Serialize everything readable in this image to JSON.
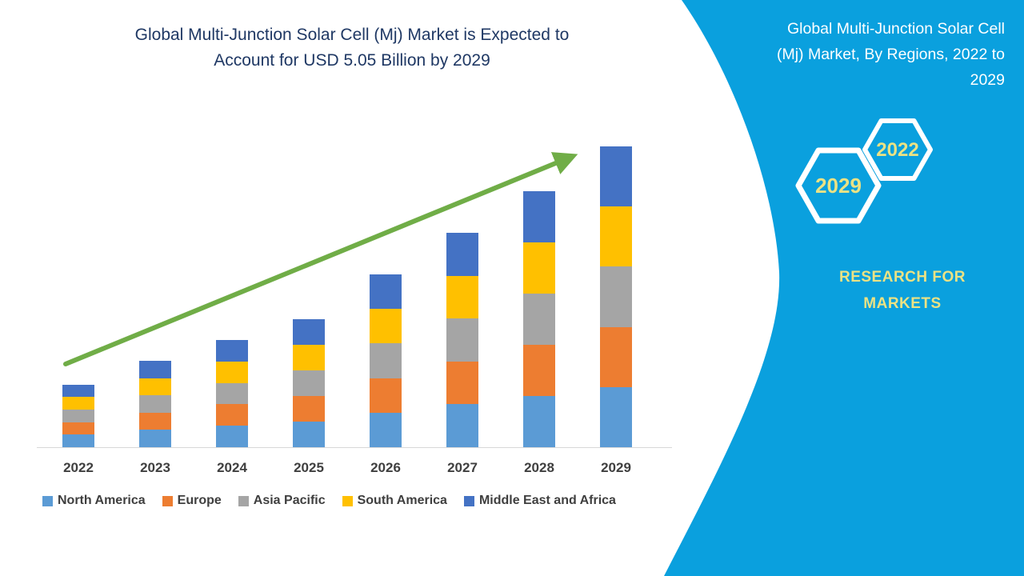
{
  "main": {
    "title": "Global Multi-Junction Solar Cell (Mj) Market is Expected to Account for USD 5.05 Billion by 2029",
    "title_lines": [
      "Global Multi-Junction Solar Cell (Mj) Market is Expected to",
      "Account for USD 5.05 Billion by 2029"
    ],
    "title_color": "#1F3864"
  },
  "chart_data": {
    "type": "bar",
    "subtype": "stacked-vertical",
    "title": "Global Multi-Junction Solar Cell (Mj) Market, By Regions, 2022 to 2029",
    "unit": "USD Billion",
    "categories": [
      "2022",
      "2023",
      "2024",
      "2025",
      "2026",
      "2027",
      "2028",
      "2029"
    ],
    "series": [
      {
        "name": "North America",
        "color": "#5B9BD5",
        "values": [
          0.21,
          0.29,
          0.36,
          0.43,
          0.58,
          0.72,
          0.86,
          1.01
        ]
      },
      {
        "name": "Europe",
        "color": "#ED7D31",
        "values": [
          0.21,
          0.29,
          0.36,
          0.43,
          0.58,
          0.72,
          0.86,
          1.01
        ]
      },
      {
        "name": "Asia Pacific",
        "color": "#A5A5A5",
        "values": [
          0.21,
          0.29,
          0.36,
          0.43,
          0.58,
          0.72,
          0.86,
          1.01
        ]
      },
      {
        "name": "South America",
        "color": "#FFC000",
        "values": [
          0.21,
          0.29,
          0.36,
          0.43,
          0.58,
          0.72,
          0.86,
          1.01
        ]
      },
      {
        "name": "Middle East and Africa",
        "color": "#4472C4",
        "values": [
          0.21,
          0.29,
          0.36,
          0.43,
          0.58,
          0.72,
          0.86,
          1.01
        ]
      }
    ],
    "totals": [
      1.05,
      1.45,
      1.8,
      2.15,
      2.9,
      3.6,
      4.3,
      5.05
    ],
    "ylim": [
      0,
      5.5
    ],
    "y_axis_visible": false,
    "grid": false,
    "legend_position": "bottom",
    "trend_arrow": true,
    "trend_arrow_color": "#70AD47",
    "axis_line_color": "#D8D8D8"
  },
  "side_panel": {
    "bg_color": "#0AA0DE",
    "title": "Global Multi-Junction Solar Cell (Mj) Market, By Regions, 2022 to 2029",
    "title_lines": [
      "Global Multi-Junction Solar Cell",
      "(Mj) Market, By Regions, 2022 to",
      "2029"
    ],
    "hexagons": [
      {
        "label": "2029"
      },
      {
        "label": "2022"
      }
    ],
    "brand_lines": [
      "RESEARCH FOR",
      "MARKETS"
    ],
    "accent_text_color": "#EBE284"
  }
}
